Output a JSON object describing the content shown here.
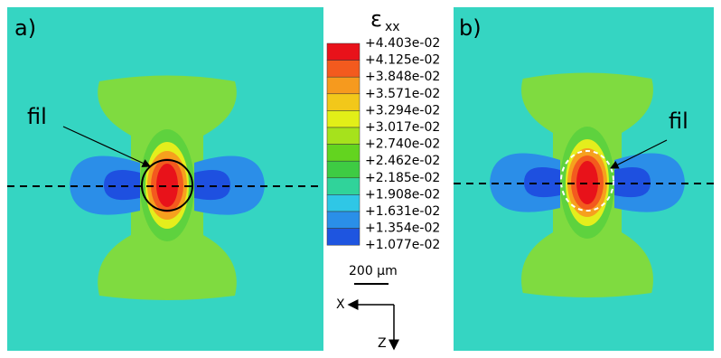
{
  "panels": [
    {
      "label": "a)",
      "annotation": "fil"
    },
    {
      "label": "b)",
      "annotation": "fil"
    }
  ],
  "legend": {
    "title": "ε",
    "subscript": "xx",
    "labels": [
      "+4.403e-02",
      "+4.125e-02",
      "+3.848e-02",
      "+3.571e-02",
      "+3.294e-02",
      "+3.017e-02",
      "+2.740e-02",
      "+2.462e-02",
      "+2.185e-02",
      "+1.908e-02",
      "+1.631e-02",
      "+1.354e-02",
      "+1.077e-02"
    ]
  },
  "scale_bar": "200 µm",
  "axes": {
    "x": "X",
    "z": "Z"
  }
}
